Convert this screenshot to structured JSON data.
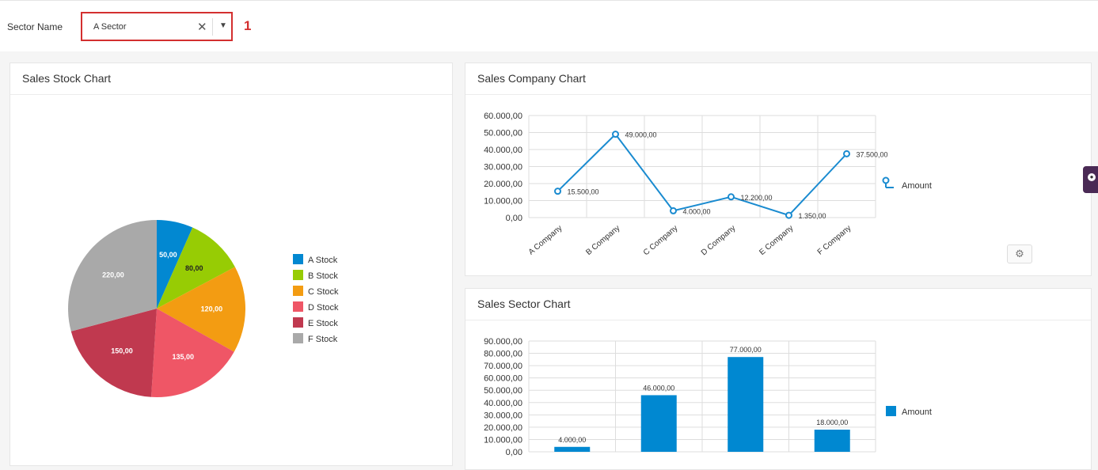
{
  "filter": {
    "label": "Sector Name",
    "selected": "A Sector",
    "clear_glyph": "✕",
    "arrow_glyph": "▼",
    "annotation": "1"
  },
  "panels": {
    "stock_title": "Sales Stock Chart",
    "company_title": "Sales Company Chart",
    "sector_title": "Sales Sector Chart"
  },
  "icons": {
    "gear": "gear-icon",
    "side_tab": "side-tab-icon"
  },
  "colors": {
    "line": "#1a8bd0",
    "bar": "#0088d1",
    "highlight": "#d32f2f"
  },
  "chart_data": [
    {
      "type": "pie",
      "title": "Sales Stock Chart",
      "categories": [
        "A Stock",
        "B Stock",
        "C Stock",
        "D Stock",
        "E Stock",
        "F Stock"
      ],
      "values": [
        50,
        80,
        120,
        135,
        150,
        220
      ],
      "labels": [
        "50,00",
        "80,00",
        "120,00",
        "135,00",
        "150,00",
        "220,00"
      ],
      "colors": [
        "#0288d1",
        "#97cc04",
        "#f39c12",
        "#ef5666",
        "#c0394f",
        "#a9a9a9"
      ],
      "legend": "right"
    },
    {
      "type": "line",
      "title": "Sales Company Chart",
      "categories": [
        "A Company",
        "B Company",
        "C Company",
        "D Company",
        "E Company",
        "F Company"
      ],
      "series": [
        {
          "name": "Amount",
          "values": [
            15500,
            49000,
            4000,
            12200,
            1350,
            37500
          ]
        }
      ],
      "labels": [
        "15.500,00",
        "49.000,00",
        "4.000,00",
        "12.200,00",
        "1.350,00",
        "37.500,00"
      ],
      "yticks": [
        "0,00",
        "10.000,00",
        "20.000,00",
        "30.000,00",
        "40.000,00",
        "50.000,00",
        "60.000,00"
      ],
      "ylim": [
        0,
        60000
      ],
      "grid": true,
      "legend": "right"
    },
    {
      "type": "bar",
      "title": "Sales Sector Chart",
      "categories": [
        "",
        "",
        "",
        ""
      ],
      "series": [
        {
          "name": "Amount",
          "values": [
            4000,
            46000,
            77000,
            18000
          ]
        }
      ],
      "labels": [
        "4.000,00",
        "46.000,00",
        "77.000,00",
        "18.000,00"
      ],
      "yticks": [
        "0,00",
        "10.000,00",
        "20.000,00",
        "30.000,00",
        "40.000,00",
        "50.000,00",
        "60.000,00",
        "70.000,00",
        "80.000,00",
        "90.000,00"
      ],
      "ylim": [
        0,
        90000
      ],
      "grid": true,
      "legend": "right"
    }
  ]
}
